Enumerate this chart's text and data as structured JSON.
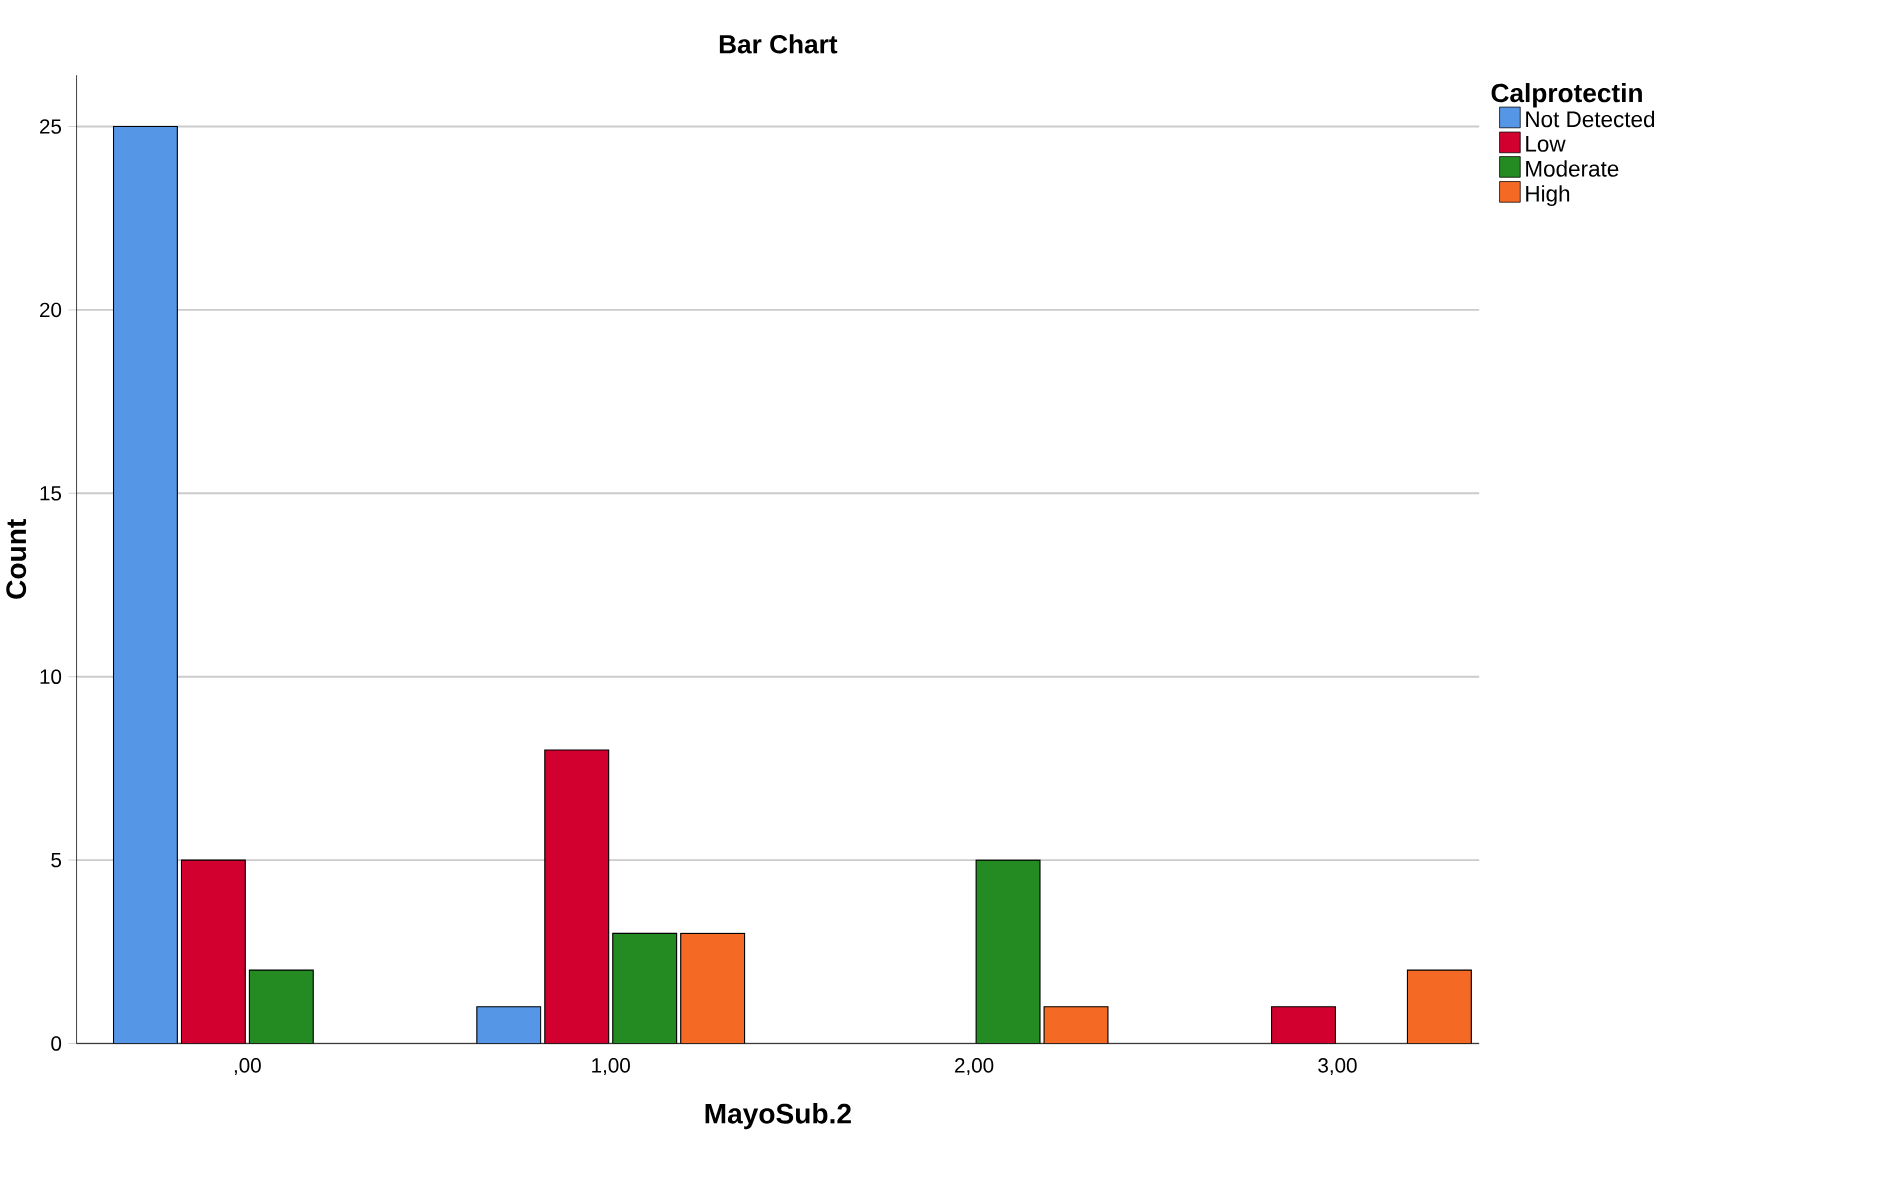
{
  "chart_data": {
    "type": "bar",
    "title": "Bar Chart",
    "xlabel": "MayoSub.2",
    "ylabel": "Count",
    "legend_title": "Calprotectin",
    "categories": [
      ",00",
      "1,00",
      "2,00",
      "3,00"
    ],
    "series": [
      {
        "name": "Not Detected",
        "color": "#5596e6",
        "values": [
          25,
          1,
          null,
          null
        ]
      },
      {
        "name": "Low",
        "color": "#d2002f",
        "values": [
          5,
          8,
          null,
          1
        ]
      },
      {
        "name": "Moderate",
        "color": "#238b21",
        "values": [
          2,
          3,
          5,
          null
        ]
      },
      {
        "name": "High",
        "color": "#f46a25",
        "values": [
          null,
          3,
          1,
          2
        ]
      }
    ],
    "ylim": [
      0,
      26.4
    ],
    "yticks": [
      0,
      5,
      10,
      15,
      20,
      25
    ],
    "grid": "y",
    "legend": "top right"
  }
}
